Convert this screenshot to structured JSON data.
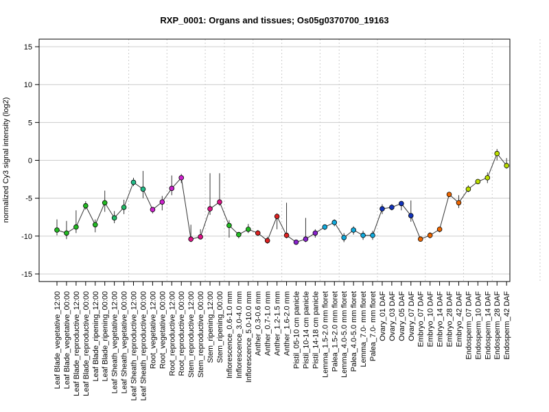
{
  "chart_data": {
    "type": "line",
    "title": "RXP_0001: Organs and tissues; Os05g0370700_19163",
    "xlabel": "",
    "ylabel": "normalized Cy3 signal intensity (log2)",
    "ylim": [
      -16,
      16
    ],
    "yticks": [
      -15,
      -10,
      -5,
      0,
      5,
      10,
      15
    ],
    "grid": "horizontal at y ticks; dotted vertical separators between tissue groups",
    "group_boundaries_after_index": [
      7,
      11,
      15,
      17,
      20,
      23,
      27,
      29,
      33,
      38,
      42,
      45,
      50,
      55
    ],
    "categories": [
      "Leaf Blade_vegetative_12:00",
      "Leaf Blade_vegetative_00:00",
      "Leaf Blade_reproductive_12:00",
      "Leaf Blade_reproductive_00:00",
      "Leaf Blade_ripening_12:00",
      "Leaf Blade_ripening_00:00",
      "Leaf Sheath_vegetative_12:00",
      "Leaf Sheath_vegetative_00:00",
      "Leaf Sheath_reproductive_12:00",
      "Leaf Sheath_reproductive_00:00",
      "Root_vegetative_12:00",
      "Root_vegetative_00:00",
      "Root_reproductive_12:00",
      "Root_reproductive_00:00",
      "Stem_reproductive_12:00",
      "Stem_reproductive_00:00",
      "Stem_ripening_12:00",
      "Stem_ripening_00:00",
      "Inflorescence_0.6-1.0 mm",
      "Inflorescence_3.0-4.0 mm",
      "Inflorescence_5.0-10.0 mm",
      "Anther_0.3-0.6 mm",
      "Anther_0.7-1.0 mm",
      "Anther_1.2-1.5 mm",
      "Anther_1.6-2.0 mm",
      "Pistil_05-10 cm panicle",
      "Pistil_10-14 cm panicle",
      "Pistil_14-18 cm panicle",
      "Lemma_1.5-2.0 mm floret",
      "Palea_1.5-2.0 mm floret",
      "Lemma_4.0-5.0 mm floret",
      "Palea_4.0-5.0 mm floret",
      "Lemma_7.0- mm floret",
      "Palea_7.0- mm floret",
      "Ovary_01 DAF",
      "Ovary_03 DAF",
      "Ovary_05 DAF",
      "Ovary_07 DAF",
      "Embryo_07 DAF",
      "Embryo_10 DAF",
      "Embryo_14 DAF",
      "Embryo_28 DAF",
      "Embryo_42 DAF",
      "Endosperm_07 DAF",
      "Endosperm_10 DAF",
      "Endosperm_14 DAF",
      "Endosperm_28 DAF",
      "Endosperm_42 DAF"
    ],
    "series": [
      {
        "values": [
          -9.2,
          -9.6,
          -8.8,
          -6.0,
          -8.5,
          -5.6,
          -7.6,
          -6.2,
          -2.9,
          -3.8,
          -6.5,
          -5.5,
          -3.7,
          -2.3,
          -10.4,
          -10.1,
          -6.4,
          -5.5,
          -8.6,
          -9.8,
          -9.1,
          -9.6,
          -10.6,
          -7.4,
          -9.9,
          -10.8,
          -10.4,
          -9.6,
          -8.8,
          -8.2,
          -10.2,
          -9.2,
          -9.9,
          -9.9,
          -6.4,
          -6.2,
          -5.7,
          -7.3,
          -10.4,
          -9.9,
          -9.1,
          -4.5,
          -5.6,
          -3.8,
          -2.8,
          -2.3,
          0.9,
          -0.7
        ],
        "err_low": [
          -9.9,
          -10.4,
          -9.6,
          -6.5,
          -9.5,
          -6.8,
          -8.3,
          -7.1,
          -3.4,
          -5.0,
          -7.0,
          -6.6,
          -4.6,
          -3.0,
          -10.8,
          -10.4,
          -7.2,
          -6.0,
          -10.2,
          -10.3,
          -9.6,
          -9.9,
          -11.0,
          -9.1,
          -10.3,
          -11.0,
          -10.8,
          -10.2,
          -9.2,
          -8.7,
          -10.8,
          -9.8,
          -10.5,
          -10.5,
          -7.1,
          -6.6,
          -6.6,
          -8.1,
          -10.6,
          -10.3,
          -9.5,
          -4.7,
          -6.3,
          -4.2,
          -3.1,
          -3.0,
          0.0,
          -1.1
        ],
        "err_high": [
          -7.8,
          -8.0,
          -6.6,
          -5.4,
          -7.8,
          -4.0,
          -6.7,
          -5.2,
          -2.3,
          -1.4,
          -6.3,
          -4.7,
          -2.0,
          -1.8,
          -8.5,
          -9.1,
          -1.7,
          -1.7,
          -7.9,
          -9.5,
          -8.4,
          -9.2,
          -10.1,
          -7.0,
          -5.6,
          -10.5,
          -7.6,
          -9.1,
          -8.5,
          -7.8,
          -9.6,
          -8.7,
          -9.3,
          -9.3,
          -5.8,
          -5.8,
          -5.4,
          -5.3,
          -10.2,
          -9.5,
          -8.8,
          -4.2,
          -4.6,
          -3.3,
          -2.5,
          -1.6,
          1.5,
          0.3
        ]
      }
    ],
    "point_colors": [
      "#22bb22",
      "#22bb22",
      "#22bb22",
      "#22bb22",
      "#22bb22",
      "#22bb22",
      "#22bb66",
      "#22bb66",
      "#22bb88",
      "#22bb88",
      "#cc22cc",
      "#cc22cc",
      "#cc22cc",
      "#cc22cc",
      "#dd1188",
      "#dd1188",
      "#dd1188",
      "#dd1188",
      "#22bb22",
      "#22bb22",
      "#22bb22",
      "#dd2222",
      "#dd2222",
      "#dd2222",
      "#dd2222",
      "#8822cc",
      "#8822cc",
      "#8822cc",
      "#11aadd",
      "#11aadd",
      "#11aadd",
      "#11aadd",
      "#11aadd",
      "#11aadd",
      "#1133bb",
      "#1133bb",
      "#1133bb",
      "#1133bb",
      "#ee6600",
      "#ee6600",
      "#ee6600",
      "#ee6600",
      "#ee6600",
      "#bbdd00",
      "#bbdd00",
      "#bbdd00",
      "#bbdd00",
      "#bbdd00"
    ]
  }
}
